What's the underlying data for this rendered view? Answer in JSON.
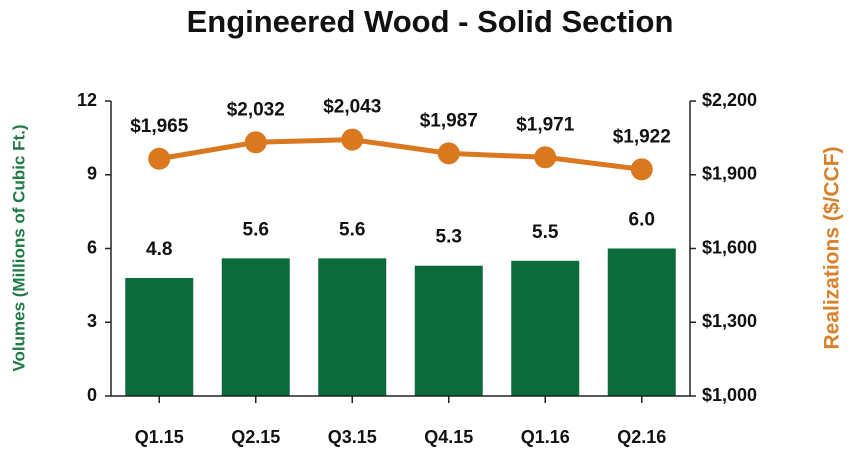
{
  "chart_data": {
    "type": "bar",
    "title": "Engineered Wood - Solid Section",
    "ylabel": "Volumes (Millions of Cubic Ft.)",
    "y2label": "Realizations ($/CCF)",
    "categories": [
      "Q1.15",
      "Q2.15",
      "Q3.15",
      "Q4.15",
      "Q1.16",
      "Q2.16"
    ],
    "ylim": [
      0,
      12
    ],
    "yticks": [
      0,
      3,
      6,
      9,
      12
    ],
    "y2lim": [
      1000,
      2200
    ],
    "y2ticks": [
      {
        "value": 1000,
        "label": "$1,000"
      },
      {
        "value": 1300,
        "label": "$1,300"
      },
      {
        "value": 1600,
        "label": "$1,600"
      },
      {
        "value": 1900,
        "label": "$1,900"
      },
      {
        "value": 2200,
        "label": "$2,200"
      }
    ],
    "ylabel_color": "#1f7a45",
    "y2label_color": "#d9812a",
    "series": [
      {
        "type": "bar",
        "color": "#0b6b3a",
        "values": [
          4.8,
          5.6,
          5.6,
          5.3,
          5.5,
          6.0
        ],
        "value_labels": [
          "4.8",
          "5.6",
          "5.6",
          "5.3",
          "5.5",
          "6.0"
        ]
      },
      {
        "type": "line",
        "axis": "y2",
        "color": "#d9781e",
        "values": [
          1965,
          2032,
          2043,
          1987,
          1971,
          1922
        ],
        "value_labels": [
          "$1,965",
          "$2,032",
          "$2,043",
          "$1,987",
          "$1,971",
          "$1,922"
        ]
      }
    ]
  }
}
